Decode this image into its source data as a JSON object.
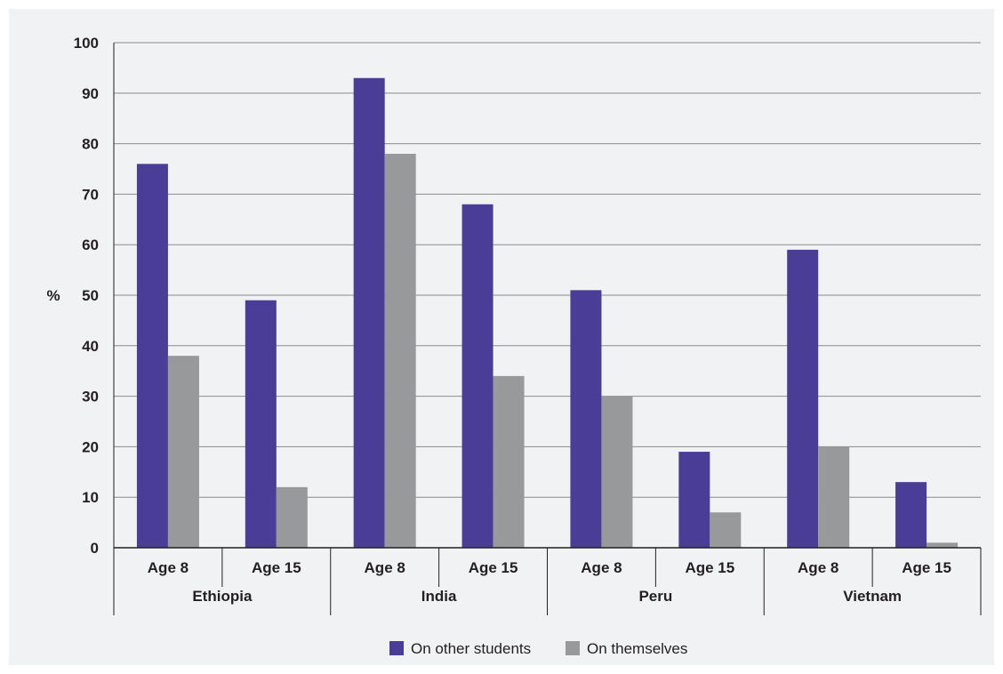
{
  "chart_data": {
    "type": "bar",
    "title": "",
    "xlabel": "",
    "ylabel": "%",
    "ylim": [
      0,
      100
    ],
    "yticks": [
      "0",
      "10",
      "20",
      "30",
      "40",
      "50",
      "60",
      "70",
      "80",
      "90",
      "100"
    ],
    "grid": true,
    "legend_position": "bottom",
    "groups": [
      {
        "label": "Ethiopia",
        "categories": [
          "Age 8",
          "Age 15"
        ]
      },
      {
        "label": "India",
        "categories": [
          "Age 8",
          "Age 15"
        ]
      },
      {
        "label": "Peru",
        "categories": [
          "Age 8",
          "Age 15"
        ]
      },
      {
        "label": "Vietnam",
        "categories": [
          "Age 8",
          "Age 15"
        ]
      }
    ],
    "categories": [
      "Ethiopia Age 8",
      "Ethiopia Age 15",
      "India Age 8",
      "India Age 15",
      "Peru Age 8",
      "Peru Age 15",
      "Vietnam Age 8",
      "Vietnam Age 15"
    ],
    "series": [
      {
        "name": "On other students",
        "color": "#4a3d97",
        "values": [
          76,
          49,
          93,
          68,
          51,
          19,
          59,
          13
        ]
      },
      {
        "name": "On themselves",
        "color": "#98999b",
        "values": [
          38,
          12,
          78,
          34,
          30,
          7,
          20,
          1
        ]
      }
    ]
  }
}
